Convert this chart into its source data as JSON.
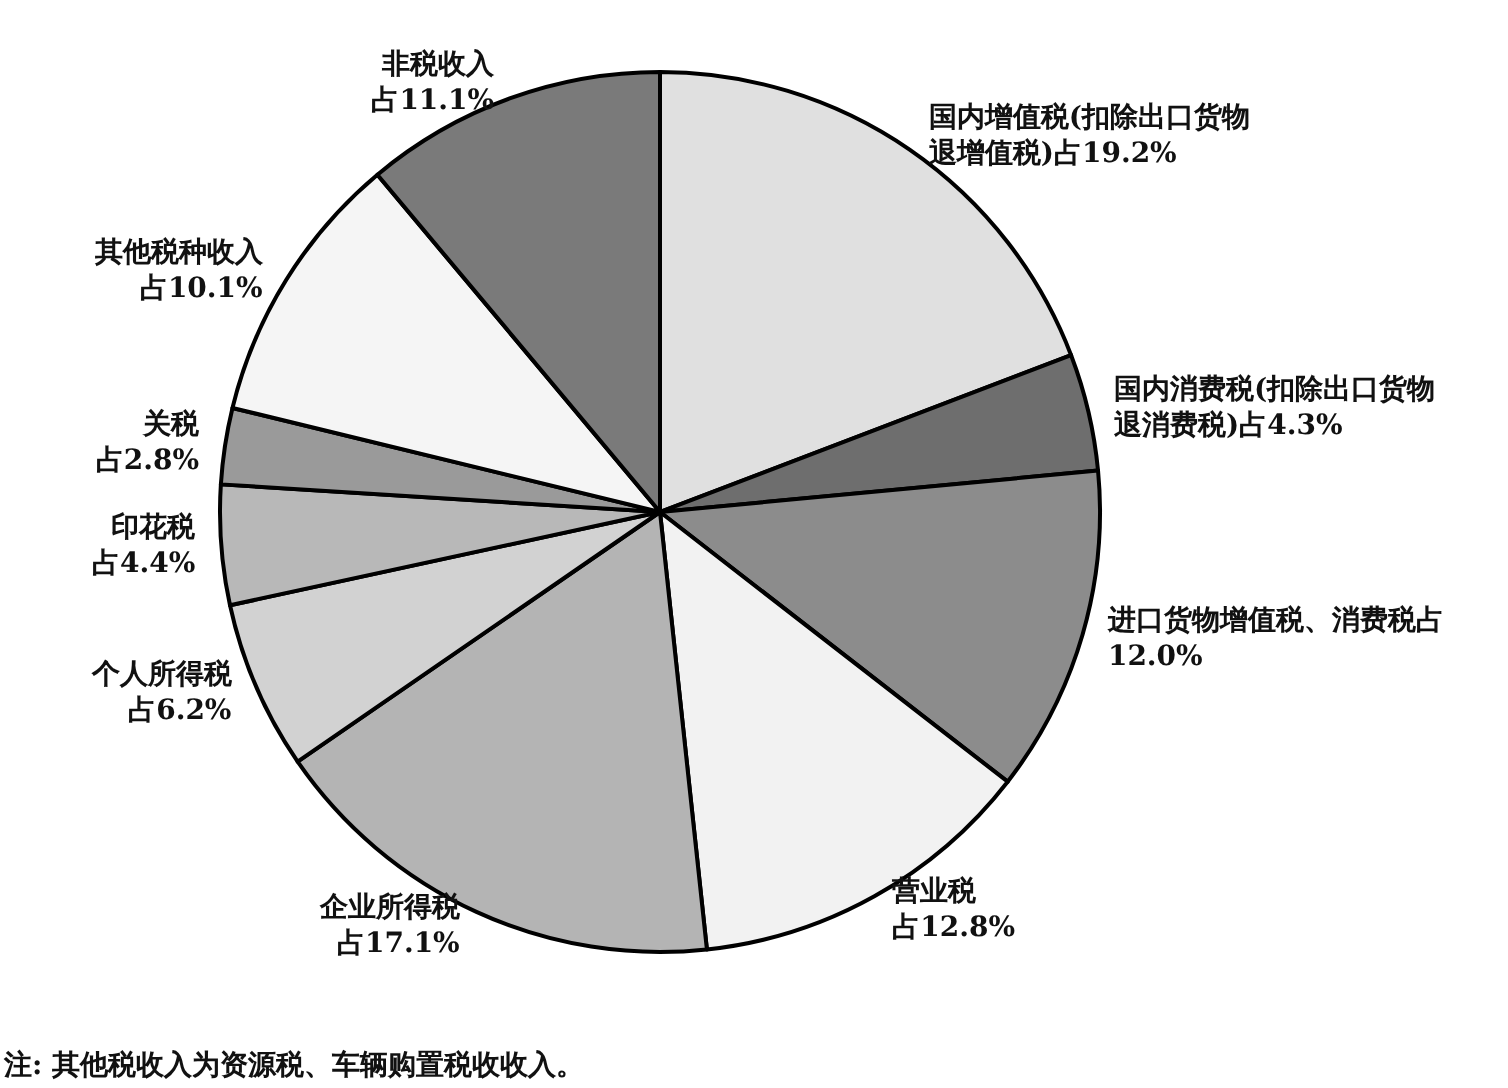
{
  "chart_data": {
    "type": "pie",
    "categories": [
      "国内增值税(扣除出口货物退增值税)",
      "国内消费税(扣除出口货物退消费税)",
      "进口货物增值税、消费税",
      "营业税",
      "企业所得税",
      "个人所得税",
      "印花税",
      "关税",
      "其他税种收入",
      "非税收入"
    ],
    "values": [
      19.2,
      4.3,
      12.0,
      12.8,
      17.1,
      6.2,
      4.4,
      2.8,
      10.1,
      11.1
    ],
    "colors": [
      "#e0e0e0",
      "#6e6e6e",
      "#8c8c8c",
      "#f2f2f2",
      "#b4b4b4",
      "#d2d2d2",
      "#b8b8b8",
      "#9a9a9a",
      "#f5f5f5",
      "#7a7a7a"
    ],
    "value_labels": [
      "占19.2%",
      "占4.3%",
      "占12.0%",
      "占12.8%",
      "占17.1%",
      "占6.2%",
      "占4.4%",
      "占2.8%",
      "占10.1%",
      "占11.1%"
    ],
    "annotations": [
      "注: 其他税收入为资源税、车辆购置税收收入。"
    ]
  }
}
